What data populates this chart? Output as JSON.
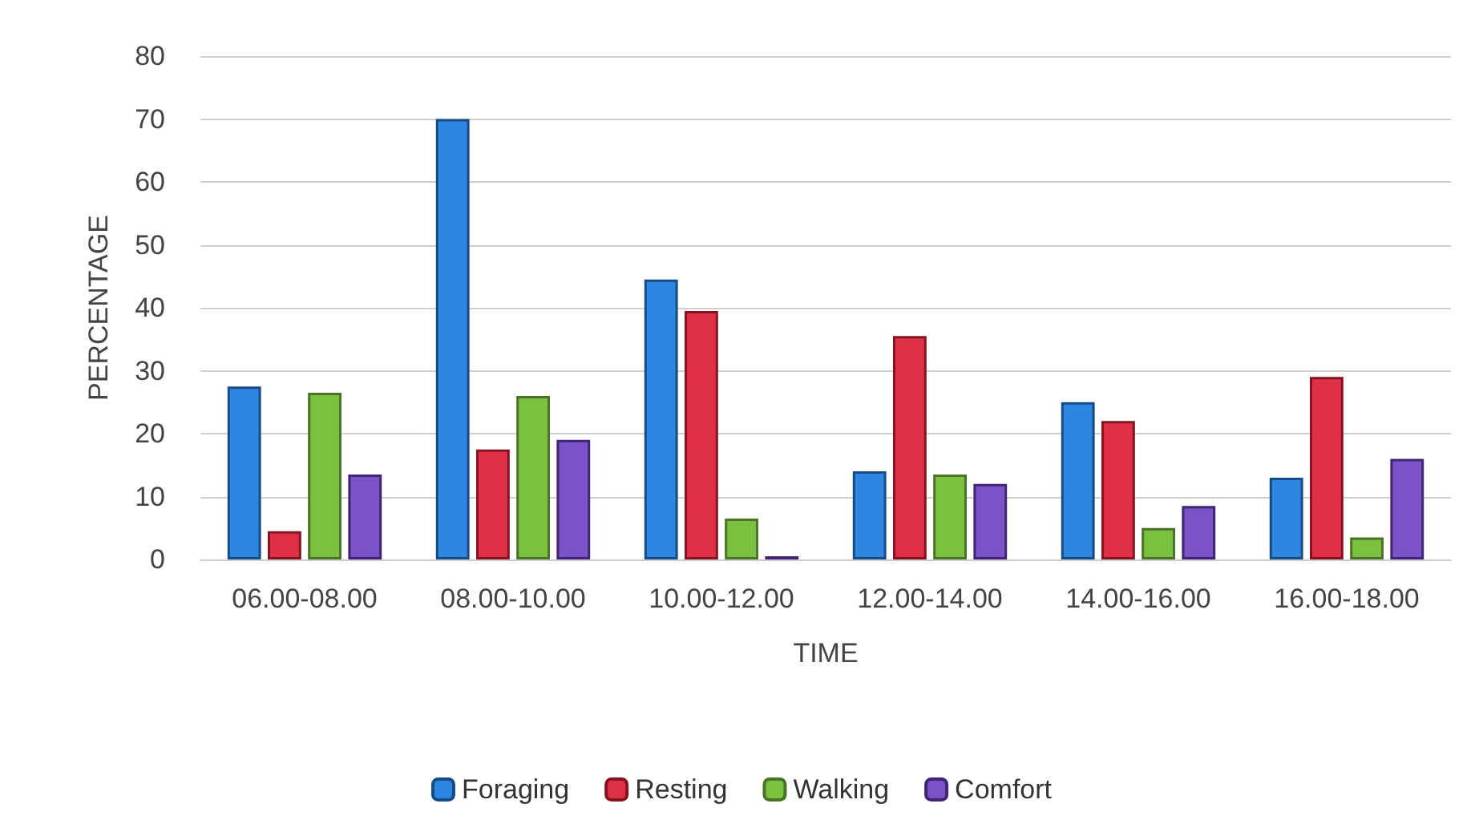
{
  "chart_data": {
    "type": "bar",
    "xlabel": "TIME",
    "ylabel": "PERCENTAGE",
    "categories": [
      "06.00-08.00",
      "08.00-10.00",
      "10.00-12.00",
      "12.00-14.00",
      "14.00-16.00",
      "16.00-18.00"
    ],
    "series": [
      {
        "name": "Foraging",
        "color": "#2f86e0",
        "values": [
          27.5,
          70,
          44.5,
          14,
          25,
          13
        ]
      },
      {
        "name": "Resting",
        "color": "#e03048",
        "values": [
          4.5,
          17.5,
          39.5,
          35.5,
          22,
          29
        ]
      },
      {
        "name": "Walking",
        "color": "#7cc040",
        "values": [
          26.5,
          26,
          6.5,
          13.5,
          5,
          3.5
        ]
      },
      {
        "name": "Comfort",
        "color": "#7b52c8",
        "values": [
          13.5,
          19,
          0.5,
          12,
          8.5,
          16
        ]
      }
    ],
    "ylim": [
      0,
      80
    ],
    "yticks": [
      0,
      10,
      20,
      30,
      40,
      50,
      60,
      70,
      80
    ],
    "grid": "y",
    "legend": "bottom"
  }
}
